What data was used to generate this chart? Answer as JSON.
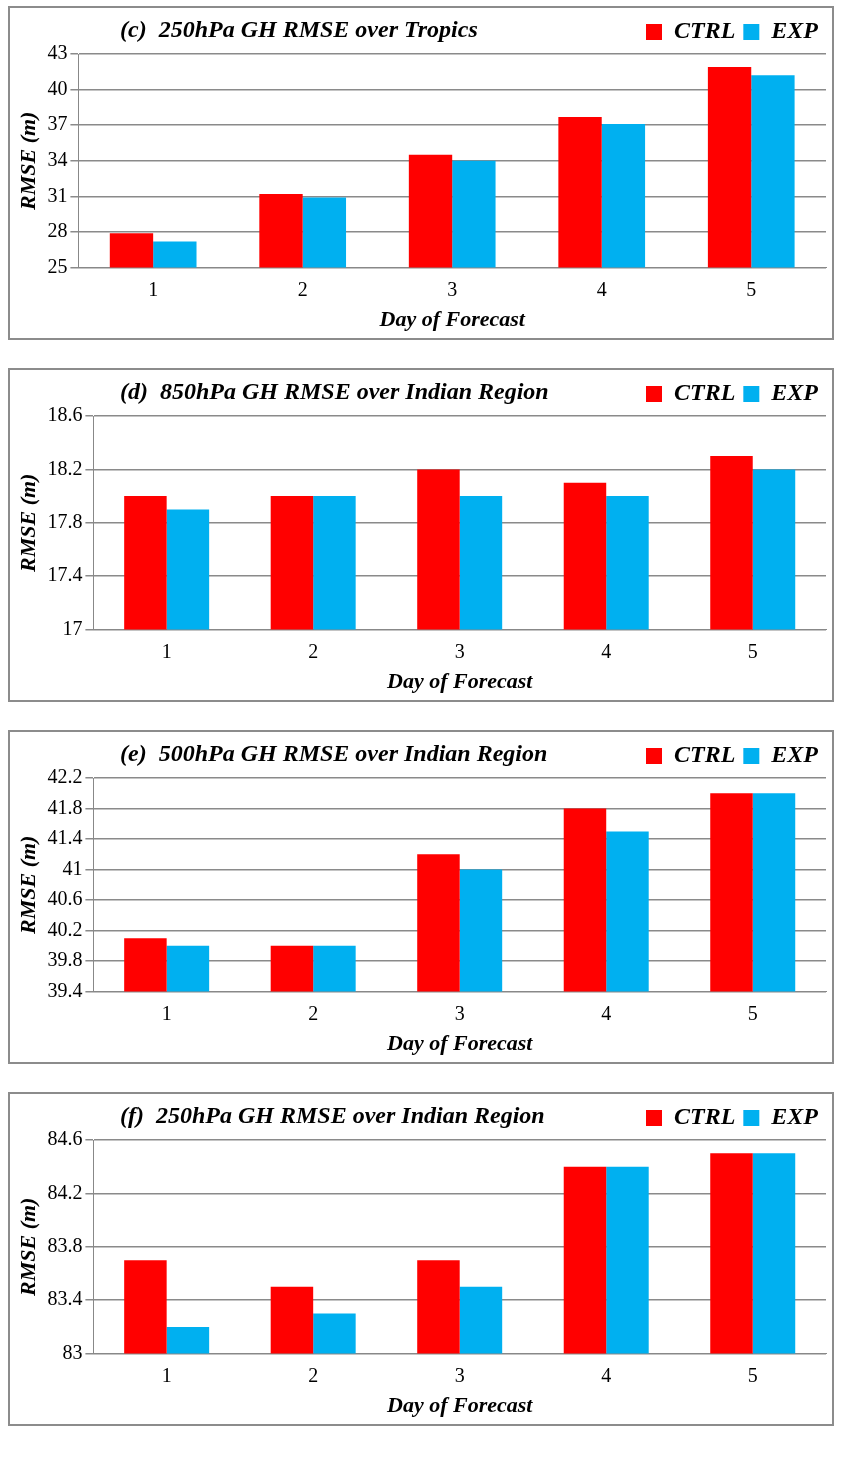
{
  "chart_data": [
    {
      "type": "bar",
      "title": "(c)  250hPa GH RMSE over Tropics",
      "xlabel": "Day of Forecast",
      "ylabel": "RMSE (m)",
      "categories": [
        "1",
        "2",
        "3",
        "4",
        "5"
      ],
      "series": [
        {
          "name": "CTRL",
          "color": "#ff0000",
          "values": [
            27.9,
            31.2,
            34.5,
            37.7,
            41.9
          ]
        },
        {
          "name": "EXP",
          "color": "#00b0f0",
          "values": [
            27.2,
            30.9,
            34.0,
            37.1,
            41.2
          ]
        }
      ],
      "ylim": [
        25,
        43
      ],
      "yticks": [
        25,
        28,
        31,
        34,
        37,
        40,
        43
      ],
      "grid": "y",
      "legend": "top right"
    },
    {
      "type": "bar",
      "title": "(d)  850hPa GH RMSE over Indian Region",
      "xlabel": "Day of Forecast",
      "ylabel": "RMSE (m)",
      "categories": [
        "1",
        "2",
        "3",
        "4",
        "5"
      ],
      "series": [
        {
          "name": "CTRL",
          "color": "#ff0000",
          "values": [
            18.0,
            18.0,
            18.2,
            18.1,
            18.3
          ]
        },
        {
          "name": "EXP",
          "color": "#00b0f0",
          "values": [
            17.9,
            18.0,
            18.0,
            18.0,
            18.2
          ]
        }
      ],
      "ylim": [
        17,
        18.6
      ],
      "yticks": [
        17,
        17.4,
        17.8,
        18.2,
        18.6
      ],
      "grid": "y",
      "legend": "top right"
    },
    {
      "type": "bar",
      "title": "(e)  500hPa GH RMSE over Indian Region",
      "xlabel": "Day of Forecast",
      "ylabel": "RMSE (m)",
      "categories": [
        "1",
        "2",
        "3",
        "4",
        "5"
      ],
      "series": [
        {
          "name": "CTRL",
          "color": "#ff0000",
          "values": [
            40.1,
            40.0,
            41.2,
            41.8,
            42.0
          ]
        },
        {
          "name": "EXP",
          "color": "#00b0f0",
          "values": [
            40.0,
            40.0,
            41.0,
            41.5,
            42.0
          ]
        }
      ],
      "ylim": [
        39.4,
        42.2
      ],
      "yticks": [
        39.4,
        39.8,
        40.2,
        40.6,
        41,
        41.4,
        41.8,
        42.2
      ],
      "grid": "y",
      "legend": "top right"
    },
    {
      "type": "bar",
      "title": "(f)  250hPa GH RMSE over Indian Region",
      "xlabel": "Day of Forecast",
      "ylabel": "RMSE (m)",
      "categories": [
        "1",
        "2",
        "3",
        "4",
        "5"
      ],
      "series": [
        {
          "name": "CTRL",
          "color": "#ff0000",
          "values": [
            83.7,
            83.5,
            83.7,
            84.4,
            84.5
          ]
        },
        {
          "name": "EXP",
          "color": "#00b0f0",
          "values": [
            83.2,
            83.3,
            83.5,
            84.4,
            84.5
          ]
        }
      ],
      "ylim": [
        83,
        84.6
      ],
      "yticks": [
        83,
        83.4,
        83.8,
        84.2,
        84.6
      ],
      "grid": "y",
      "legend": "top right"
    }
  ]
}
